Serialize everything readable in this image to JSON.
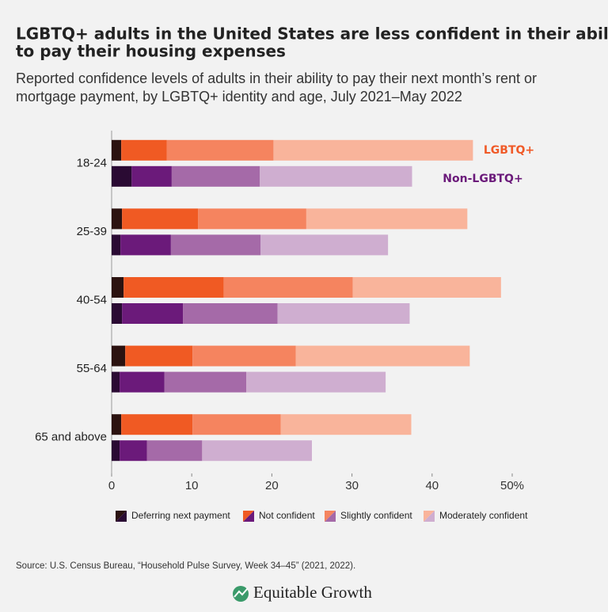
{
  "chart_data": {
    "type": "grouped-stacked-bar",
    "title_lines": [
      "LGBTQ+ adults in the United States are less confident in their ability",
      "to pay their housing expenses"
    ],
    "subtitle_lines": [
      "Reported confidence levels of adults in their ability to pay their next month’s rent or",
      "mortgage payment, by LGBTQ+ identity and age, July 2021–May 2022"
    ],
    "categories": [
      "18-24",
      "25-39",
      "40-54",
      "55-64",
      "65 and above"
    ],
    "segments": [
      "Deferring next payment",
      "Not confident",
      "Slightly confident",
      "Moderately confident"
    ],
    "groups": [
      {
        "name": "LGBTQ+",
        "name_color": "#f05a28",
        "colors": [
          "#2b1210",
          "#f05a23",
          "#f5845f",
          "#f9b49b"
        ],
        "values": [
          [
            1.2,
            1.3,
            1.5,
            1.7,
            1.2
          ],
          [
            5.7,
            9.5,
            12.5,
            8.4,
            8.9
          ],
          [
            13.3,
            13.5,
            16.1,
            12.9,
            11.0
          ],
          [
            24.9,
            20.1,
            18.5,
            21.7,
            16.3
          ]
        ]
      },
      {
        "name": "Non-LGBTQ+",
        "name_color": "#6b1a7a",
        "colors": [
          "#2a0a33",
          "#6b1a7a",
          "#a56aa8",
          "#cfaed0"
        ],
        "values": [
          [
            2.5,
            1.1,
            1.3,
            1.0,
            1.0
          ],
          [
            5.0,
            6.3,
            7.6,
            5.6,
            3.4
          ],
          [
            11.0,
            11.2,
            11.8,
            10.2,
            6.9
          ],
          [
            19.0,
            15.9,
            16.5,
            17.4,
            13.7
          ]
        ]
      }
    ],
    "xlim": [
      0,
      50
    ],
    "xticks": [
      0,
      10,
      20,
      30,
      40,
      {
        "value": 50,
        "label": "50%"
      }
    ]
  },
  "footer": {
    "source": "Source: U.S. Census Bureau, “Household Pulse Survey, Week 34–45” (2021, 2022).",
    "brand": "Equitable Growth"
  }
}
